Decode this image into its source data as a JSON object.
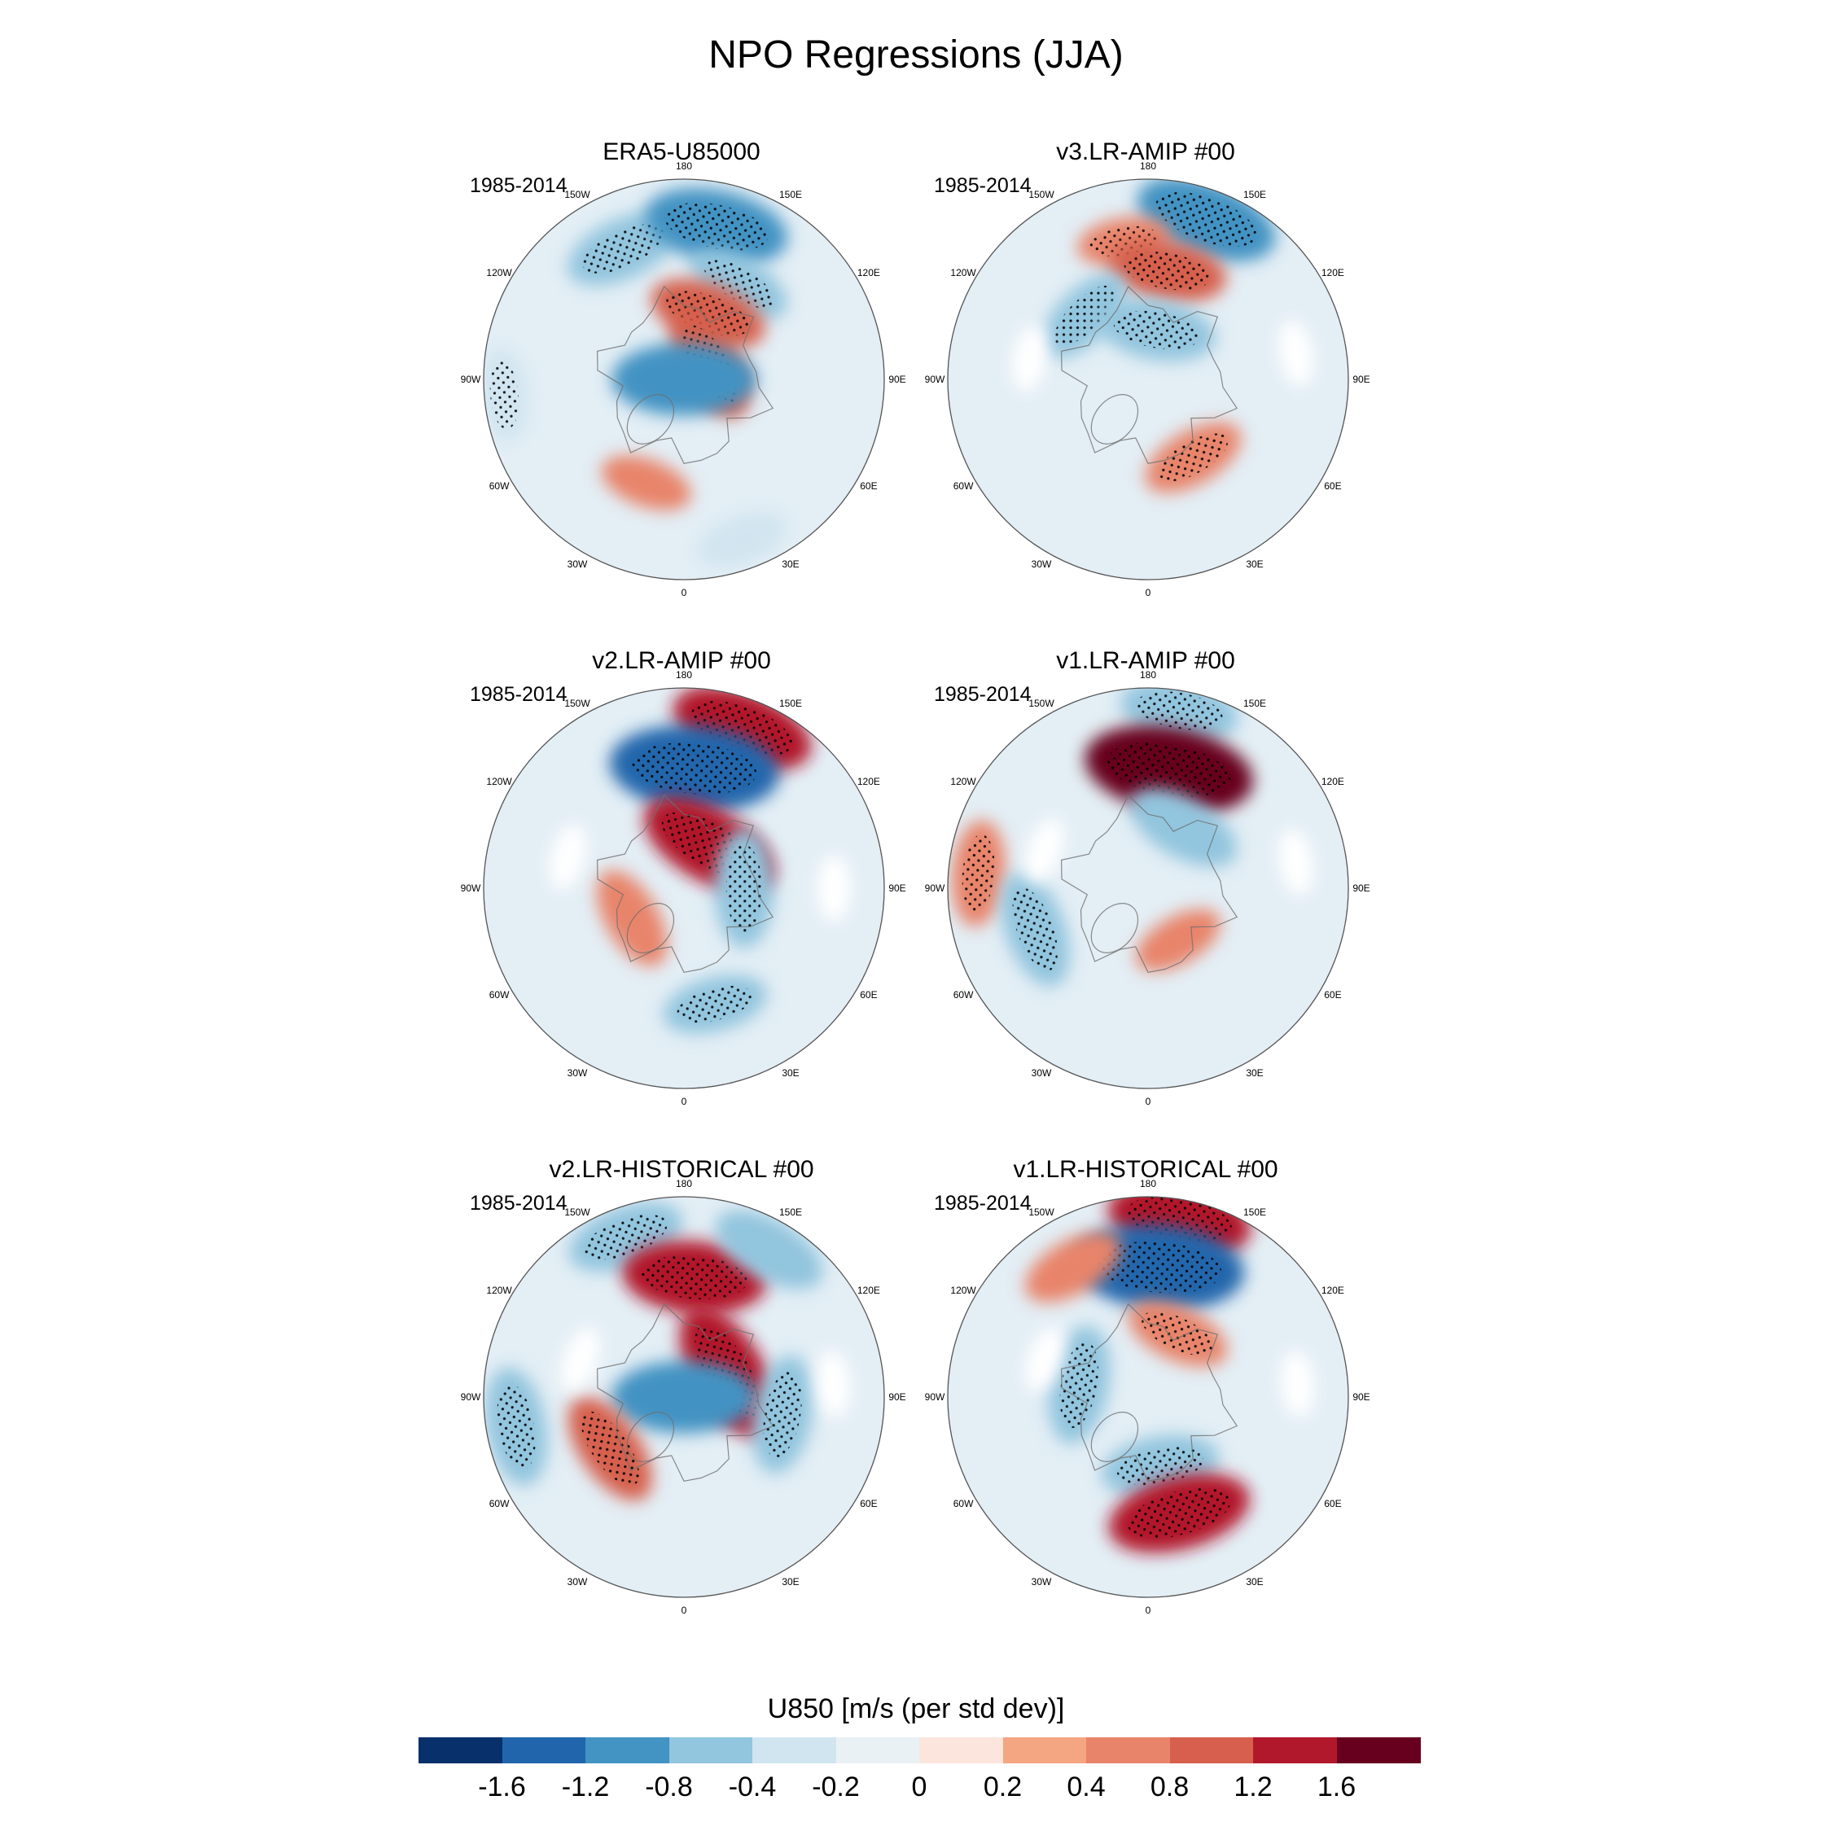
{
  "chart_data": {
    "type": "contour-map",
    "title": "NPO Regressions (JJA)",
    "projection": "north polar stereographic",
    "variable": "U850",
    "longitude_labels": [
      "180",
      "150E",
      "120E",
      "90E",
      "60E",
      "30E",
      "0",
      "30W",
      "60W",
      "90W",
      "120W",
      "150W"
    ],
    "panels": [
      {
        "title": "ERA5-U85000",
        "period": "1985-2014",
        "features": [
          {
            "lon": -155,
            "r": 0.72,
            "value": -0.8,
            "stipple": true
          },
          {
            "lon": 168,
            "r": 0.78,
            "value": -1.2,
            "stipple": true
          },
          {
            "lon": 150,
            "r": 0.55,
            "value": -0.6,
            "stipple": true
          },
          {
            "lon": 160,
            "r": 0.35,
            "value": 0.8,
            "stipple": true
          },
          {
            "lon": 120,
            "r": 0.15,
            "value": 0.8,
            "stipple": true
          },
          {
            "lon": 0,
            "r": 0.0,
            "value": -1.2,
            "stipple": false
          },
          {
            "lon": -85,
            "r": 0.9,
            "value": -0.4,
            "stipple": true
          },
          {
            "lon": -20,
            "r": 0.55,
            "value": 0.4,
            "stipple": false
          },
          {
            "lon": 20,
            "r": 0.85,
            "value": -0.4,
            "stipple": false
          }
        ]
      },
      {
        "title": "v3.LR-AMIP  #00",
        "period": "1985-2014",
        "features": [
          {
            "lon": 160,
            "r": 0.85,
            "value": -1.2,
            "stipple": true
          },
          {
            "lon": -170,
            "r": 0.7,
            "value": 0.4,
            "stipple": true
          },
          {
            "lon": 170,
            "r": 0.55,
            "value": 0.8,
            "stipple": true
          },
          {
            "lon": -135,
            "r": 0.45,
            "value": -0.6,
            "stipple": true
          },
          {
            "lon": 170,
            "r": 0.25,
            "value": -0.8,
            "stipple": true
          },
          {
            "lon": 30,
            "r": 0.45,
            "value": 0.6,
            "stipple": true
          },
          {
            "lon": 100,
            "r": 0.75,
            "value": 0.0,
            "stipple": false
          },
          {
            "lon": -100,
            "r": 0.6,
            "value": 0.0,
            "stipple": false
          }
        ]
      },
      {
        "title": "v2.LR-AMIP  #00",
        "period": "1985-2014",
        "features": [
          {
            "lon": 160,
            "r": 0.85,
            "value": 1.2,
            "stipple": true
          },
          {
            "lon": 175,
            "r": 0.6,
            "value": -1.6,
            "stipple": true
          },
          {
            "lon": 150,
            "r": 0.25,
            "value": 1.2,
            "stipple": true
          },
          {
            "lon": 90,
            "r": 0.3,
            "value": -0.8,
            "stipple": true
          },
          {
            "lon": 15,
            "r": 0.6,
            "value": -0.6,
            "stipple": true
          },
          {
            "lon": -60,
            "r": 0.3,
            "value": 0.6,
            "stipple": false
          },
          {
            "lon": 90,
            "r": 0.75,
            "value": 0.0,
            "stipple": false
          },
          {
            "lon": -105,
            "r": 0.6,
            "value": 0.0,
            "stipple": false
          }
        ]
      },
      {
        "title": "v1.LR-AMIP  #00",
        "period": "1985-2014",
        "features": [
          {
            "lon": 170,
            "r": 0.9,
            "value": -0.8,
            "stipple": true
          },
          {
            "lon": 170,
            "r": 0.6,
            "value": 1.6,
            "stipple": true
          },
          {
            "lon": 150,
            "r": 0.35,
            "value": -0.8,
            "stipple": false
          },
          {
            "lon": -95,
            "r": 0.85,
            "value": 0.6,
            "stipple": true
          },
          {
            "lon": -70,
            "r": 0.6,
            "value": -0.8,
            "stipple": true
          },
          {
            "lon": 30,
            "r": 0.3,
            "value": 0.4,
            "stipple": false
          },
          {
            "lon": 100,
            "r": 0.75,
            "value": 0.0,
            "stipple": false
          },
          {
            "lon": -110,
            "r": 0.55,
            "value": 0.0,
            "stipple": false
          }
        ]
      },
      {
        "title": "v2.LR-HISTORICAL  #00",
        "period": "1985-2014",
        "features": [
          {
            "lon": -160,
            "r": 0.85,
            "value": -0.8,
            "stipple": true
          },
          {
            "lon": 175,
            "r": 0.6,
            "value": 1.2,
            "stipple": true
          },
          {
            "lon": 150,
            "r": 0.85,
            "value": -0.8,
            "stipple": false
          },
          {
            "lon": 120,
            "r": 0.25,
            "value": 1.2,
            "stipple": true
          },
          {
            "lon": 0,
            "r": 0.0,
            "value": -1.2,
            "stipple": false
          },
          {
            "lon": -55,
            "r": 0.45,
            "value": 0.8,
            "stipple": true
          },
          {
            "lon": -80,
            "r": 0.85,
            "value": -0.8,
            "stipple": true
          },
          {
            "lon": 80,
            "r": 0.5,
            "value": -0.8,
            "stipple": true
          },
          {
            "lon": 95,
            "r": 0.75,
            "value": 0.0,
            "stipple": false
          },
          {
            "lon": -110,
            "r": 0.55,
            "value": 0.0,
            "stipple": false
          }
        ]
      },
      {
        "title": "v1.LR-HISTORICAL  #00",
        "period": "1985-2014",
        "features": [
          {
            "lon": 170,
            "r": 0.9,
            "value": 1.2,
            "stipple": true
          },
          {
            "lon": 175,
            "r": 0.65,
            "value": -1.6,
            "stipple": true
          },
          {
            "lon": 155,
            "r": 0.35,
            "value": 0.6,
            "stipple": true
          },
          {
            "lon": -100,
            "r": 0.35,
            "value": -0.8,
            "stipple": true
          },
          {
            "lon": 10,
            "r": 0.35,
            "value": -0.8,
            "stipple": true
          },
          {
            "lon": 15,
            "r": 0.6,
            "value": 1.2,
            "stipple": true
          },
          {
            "lon": -150,
            "r": 0.75,
            "value": 0.6,
            "stipple": false
          },
          {
            "lon": 95,
            "r": 0.75,
            "value": 0.0,
            "stipple": false
          },
          {
            "lon": -110,
            "r": 0.55,
            "value": 0.0,
            "stipple": false
          }
        ]
      }
    ],
    "colorbar": {
      "title": "U850 [m/s (per std dev)]",
      "labels": [
        "-1.6",
        "-1.2",
        "-0.8",
        "-0.4",
        "-0.2",
        "0",
        "0.2",
        "0.4",
        "0.8",
        "1.2",
        "1.6"
      ],
      "levels": [
        -1.6,
        -1.2,
        -0.8,
        -0.4,
        -0.2,
        0,
        0.2,
        0.4,
        0.8,
        1.2,
        1.6
      ],
      "colors": [
        "#08306b",
        "#2166ac",
        "#4393c3",
        "#92c5de",
        "#d1e5f0",
        "#eaf1f5",
        "#fbe5dc",
        "#f4a582",
        "#e8846a",
        "#d6604d",
        "#b2182b",
        "#67001f"
      ]
    }
  }
}
